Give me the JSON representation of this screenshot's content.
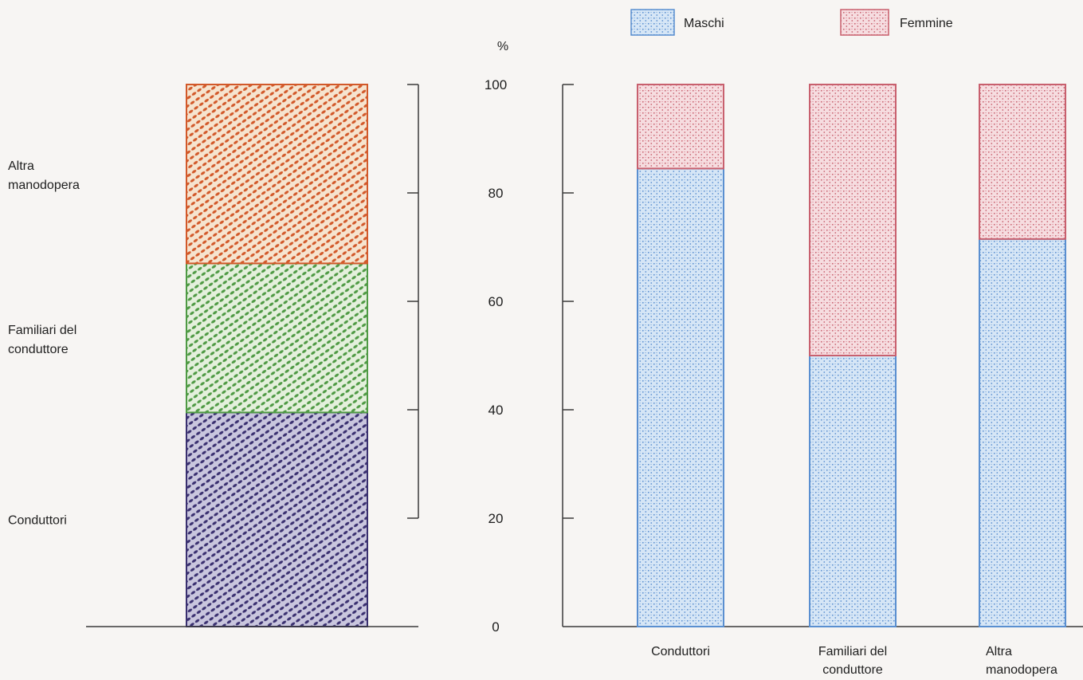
{
  "legend": {
    "placement": "top-right",
    "items": [
      {
        "label": "Maschi",
        "color": "#5a8fd0"
      },
      {
        "label": "Femmine",
        "color": "#c8606e"
      }
    ]
  },
  "colors": {
    "conduttori": "#3a3070",
    "familiari": "#4f9a44",
    "altra": "#d2592a",
    "maschi": "#5a8fd0",
    "femmine": "#c8606e",
    "axis": "#3a3a3a"
  },
  "chart_data": [
    {
      "type": "bar",
      "stacked": true,
      "title": "",
      "categories": [
        ""
      ],
      "series": [
        {
          "name": "Conduttori",
          "values": [
            39.5
          ]
        },
        {
          "name": "Familiari del conduttore",
          "values": [
            27.5
          ]
        },
        {
          "name": "Altra manodopera",
          "values": [
            33.0
          ]
        }
      ],
      "ylabel": "%",
      "ylim": [
        0,
        100
      ],
      "yticks": [
        "0",
        "20",
        "40",
        "60",
        "80",
        "100"
      ],
      "grid": false
    },
    {
      "type": "bar",
      "stacked": true,
      "title": "",
      "categories": [
        "Conduttori",
        "Familiari del conduttore",
        "Altra manodopera"
      ],
      "series": [
        {
          "name": "Maschi",
          "values": [
            84.5,
            50.0,
            71.5
          ]
        },
        {
          "name": "Femmine",
          "values": [
            15.5,
            50.0,
            28.5
          ]
        }
      ],
      "ylabel": "%",
      "ylim": [
        0,
        100
      ],
      "yticks": [
        "0",
        "20",
        "40",
        "60",
        "80",
        "100"
      ],
      "grid": false
    }
  ]
}
